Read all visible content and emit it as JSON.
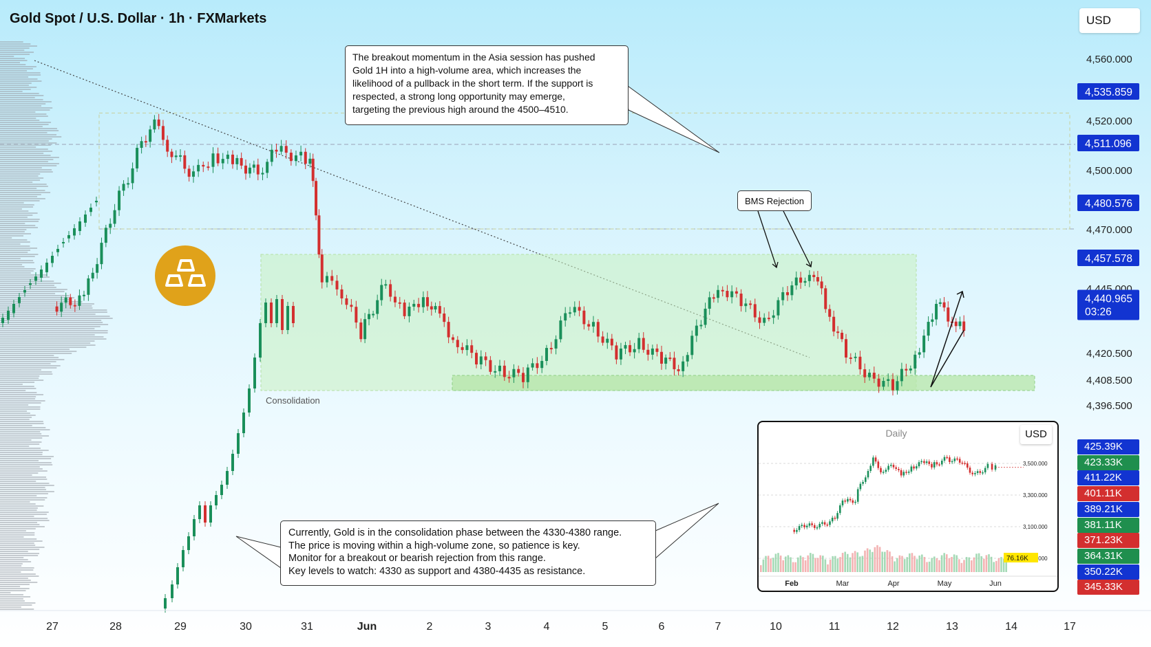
{
  "title": "Gold Spot / U.S. Dollar · 1h · FXMarkets",
  "currency_label": "USD",
  "colors": {
    "up": "#1a8f5a",
    "down": "#d32f2f",
    "zone": "#c8f0c0",
    "badge": "#e0a21a",
    "tag_blue": "#1234d1"
  },
  "chart_data": [
    {
      "type": "candlestick",
      "timeframe": "1h",
      "x_ticks": [
        "27",
        "28",
        "29",
        "30",
        "31",
        "Jun",
        "2",
        "3",
        "4",
        "5",
        "6",
        "7",
        "10",
        "11",
        "12",
        "13",
        "14",
        "17"
      ],
      "y_ticks": [
        4560.0,
        4520.0,
        4500.0,
        4470.0,
        4445.0,
        4420.5,
        4408.5,
        4396.5
      ],
      "y_tick_labels": [
        "4,560.000",
        "4,520.000",
        "4,500.000",
        "4,470.000",
        "4,445.000",
        "4,420.500",
        "4,408.500",
        "4,396.500"
      ],
      "price_tags": [
        {
          "label": "4,535.859",
          "value": 4535.859
        },
        {
          "label": "4,511.096",
          "value": 4511.096
        },
        {
          "label": "4,480.576",
          "value": 4480.576
        },
        {
          "label": "4,457.578",
          "value": 4457.578
        }
      ],
      "current_price": {
        "label": "4,440.965",
        "countdown": "03:26",
        "value": 4440.965
      },
      "zone_label": "Consolidation",
      "series_path": [
        [
          0,
          4438
        ],
        [
          0.5,
          4441
        ],
        [
          1.4,
          4512
        ],
        [
          1.6,
          4518
        ],
        [
          1.8,
          4510
        ],
        [
          2.2,
          4497
        ],
        [
          2.5,
          4506
        ],
        [
          2.8,
          4503
        ],
        [
          3.2,
          4499
        ],
        [
          3.5,
          4508
        ],
        [
          3.9,
          4505
        ],
        [
          4.05,
          4505
        ],
        [
          4.15,
          4475
        ],
        [
          4.25,
          4448
        ],
        [
          4.5,
          4447
        ],
        [
          4.9,
          4428
        ],
        [
          5.3,
          4447
        ],
        [
          5.6,
          4434
        ],
        [
          5.9,
          4442
        ],
        [
          6.1,
          4436
        ],
        [
          6.4,
          4426
        ],
        [
          6.8,
          4418
        ],
        [
          7.2,
          4412
        ],
        [
          7.6,
          4410
        ],
        [
          8.0,
          4420
        ],
        [
          8.4,
          4438
        ],
        [
          8.8,
          4430
        ],
        [
          9.2,
          4420
        ],
        [
          9.6,
          4424
        ],
        [
          10.0,
          4418
        ],
        [
          10.3,
          4414
        ],
        [
          10.7,
          4433
        ],
        [
          11.0,
          4446
        ],
        [
          11.4,
          4440
        ],
        [
          11.8,
          4432
        ],
        [
          12.2,
          4444
        ],
        [
          12.5,
          4450
        ],
        [
          12.65,
          4452
        ],
        [
          12.85,
          4438
        ],
        [
          13.2,
          4420
        ],
        [
          13.6,
          4410
        ],
        [
          14.0,
          4405
        ],
        [
          14.3,
          4416
        ],
        [
          14.6,
          4430
        ],
        [
          14.8,
          4440
        ],
        [
          15.0,
          4432
        ],
        [
          15.2,
          4429
        ]
      ],
      "volume_profile": "left-edge horizontal histogram"
    },
    {
      "type": "candlestick",
      "timeframe": "Daily",
      "title": "Daily",
      "currency_label": "USD",
      "x_ticks": [
        "Feb",
        "Mar",
        "Apr",
        "May",
        "Jun"
      ],
      "y_ticks": [
        3500.0,
        3300.0,
        3100.0,
        2900.0
      ],
      "y_tick_labels": [
        "3,500.000",
        "3,300.000",
        "3,100.000",
        "2,900.000"
      ],
      "volume_label": "76.16K",
      "series_path": [
        [
          0,
          3080
        ],
        [
          0.25,
          3100
        ],
        [
          0.55,
          3110
        ],
        [
          0.8,
          3140
        ],
        [
          1.0,
          3250
        ],
        [
          1.25,
          3270
        ],
        [
          1.35,
          3380
        ],
        [
          1.5,
          3440
        ],
        [
          1.6,
          3520
        ],
        [
          1.75,
          3460
        ],
        [
          2.0,
          3480
        ],
        [
          2.15,
          3420
        ],
        [
          2.35,
          3480
        ],
        [
          2.55,
          3500
        ],
        [
          2.75,
          3490
        ],
        [
          3.05,
          3530
        ],
        [
          3.3,
          3510
        ],
        [
          3.6,
          3430
        ],
        [
          3.85,
          3480
        ],
        [
          4.1,
          3475
        ]
      ]
    }
  ],
  "annotations": {
    "top_note": [
      "The breakout momentum in the Asia session has pushed",
      "Gold 1H into a high-volume area, which increases the",
      "likelihood of a pullback in the short term. If the support is",
      "respected, a strong long opportunity may emerge,",
      "targeting the previous high around the 4500–4510."
    ],
    "bms_label": "BMS Rejection",
    "bottom_note": [
      "Currently, Gold is in the consolidation phase between the 4330-4380 range.",
      "The price is moving within a high-volume zone, so patience is key.",
      "Monitor for a breakout or bearish rejection from this range.",
      "Key levels to watch: 4330 as support and 4380-4435 as resistance."
    ]
  },
  "volume_tags": [
    {
      "label": "425.39K",
      "color": "#1234d1"
    },
    {
      "label": "423.33K",
      "color": "#1f8f4e"
    },
    {
      "label": "411.22K",
      "color": "#1234d1"
    },
    {
      "label": "401.11K",
      "color": "#d32f2f"
    },
    {
      "label": "389.21K",
      "color": "#1234d1"
    },
    {
      "label": "381.11K",
      "color": "#1f8f4e"
    },
    {
      "label": "371.23K",
      "color": "#d32f2f"
    },
    {
      "label": "364.31K",
      "color": "#1f8f4e"
    },
    {
      "label": "350.22K",
      "color": "#1234d1"
    },
    {
      "label": "345.33K",
      "color": "#d32f2f"
    }
  ]
}
